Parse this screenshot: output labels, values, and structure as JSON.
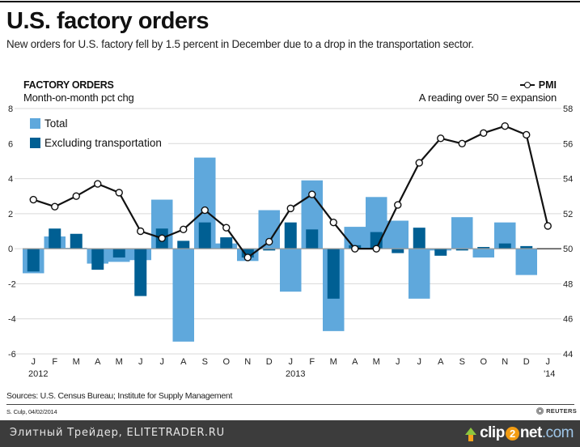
{
  "header": {
    "title": "U.S. factory orders",
    "subtitle": "New orders for U.S. factory fell by 1.5 percent in December due to a drop in the transportation sector."
  },
  "chart_data": {
    "type": "bar",
    "title": "FACTORY ORDERS",
    "ylabel": "Month-on-month pct chg",
    "ylim": [
      -6,
      8
    ],
    "yticks": [
      8,
      6,
      4,
      2,
      0,
      -2,
      -4,
      -6
    ],
    "y2label": "A reading over 50 = expansion",
    "y2lim": [
      44,
      58
    ],
    "y2ticks": [
      58,
      56,
      54,
      52,
      50,
      48,
      46,
      44
    ],
    "grid": true,
    "legend": {
      "placement": "top-left",
      "entries": [
        "Total",
        "Excluding transportation"
      ]
    },
    "legend2": {
      "placement": "top-right",
      "entries": [
        "PMI"
      ]
    },
    "categories": [
      "J",
      "F",
      "M",
      "A",
      "M",
      "J",
      "J",
      "A",
      "S",
      "O",
      "N",
      "D",
      "J",
      "F",
      "M",
      "A",
      "M",
      "J",
      "J",
      "A",
      "S",
      "O",
      "N",
      "D",
      "J"
    ],
    "year_labels": [
      {
        "index": 0,
        "label": "2012"
      },
      {
        "index": 12,
        "label": "2013"
      },
      {
        "index": 24,
        "label": "'14"
      }
    ],
    "series": [
      {
        "name": "Total",
        "type": "bar",
        "axis": "left",
        "color": "#5fa8dc",
        "values": [
          -1.4,
          0.7,
          0.05,
          -0.85,
          -0.75,
          -0.65,
          2.8,
          -5.3,
          5.2,
          0.3,
          -0.7,
          2.2,
          -2.45,
          3.9,
          -4.7,
          1.25,
          2.95,
          1.6,
          -2.85,
          -0.1,
          1.8,
          -0.5,
          1.5,
          -1.5,
          null
        ]
      },
      {
        "name": "Excluding transportation",
        "type": "bar",
        "axis": "left",
        "color": "#005f93",
        "values": [
          -1.3,
          1.15,
          0.85,
          -1.2,
          -0.5,
          -2.7,
          1.15,
          0.45,
          1.5,
          0.65,
          -0.5,
          -0.1,
          1.5,
          1.1,
          -2.85,
          0.2,
          0.95,
          -0.25,
          1.2,
          -0.4,
          -0.1,
          0.1,
          0.3,
          0.15,
          null
        ]
      },
      {
        "name": "PMI",
        "type": "line",
        "axis": "right",
        "color": "#111111",
        "values": [
          52.8,
          52.4,
          53.0,
          53.7,
          53.2,
          51.0,
          50.6,
          51.1,
          52.2,
          51.2,
          49.5,
          50.4,
          52.3,
          53.1,
          51.5,
          50.0,
          50.0,
          52.5,
          54.9,
          56.3,
          56.0,
          56.6,
          57.0,
          56.5,
          51.3
        ]
      }
    ]
  },
  "legend": {
    "total_label": "Total",
    "excl_label": "Excluding transportation",
    "pmi_label": "PMI",
    "pmi_note": "A reading over 50 = expansion",
    "left_title": "FACTORY ORDERS",
    "left_sub": "Month-on-month pct chg"
  },
  "footer": {
    "sources": "Sources: U.S. Census Bureau; Institute for Supply Management",
    "credit": "S. Culp, 04/02/2014",
    "brand": "REUTERS"
  },
  "watermark_bar": {
    "text": "Элитный Трейдер, ELITETRADER.RU",
    "logo_pre": "clip",
    "logo_two": "2",
    "logo_post": "net",
    "logo_dom": ".com"
  }
}
